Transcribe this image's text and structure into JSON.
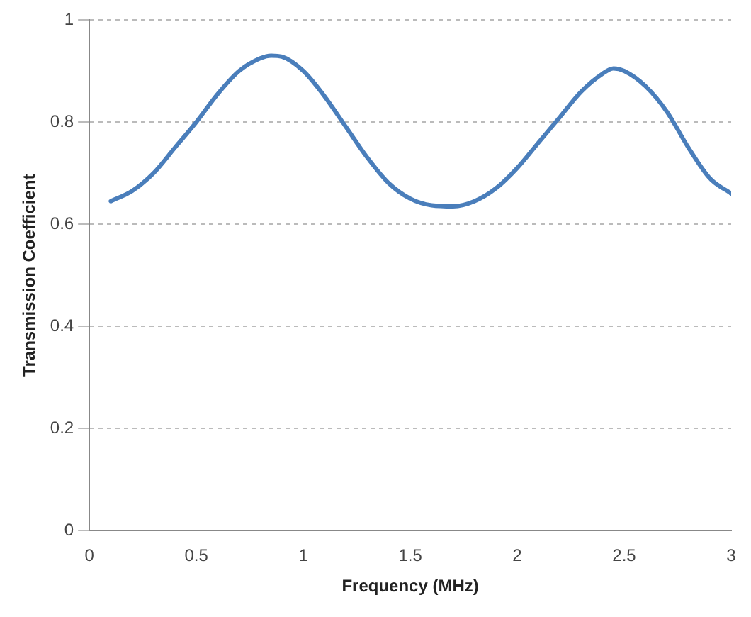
{
  "chart_data": {
    "type": "line",
    "xlabel": "Frequency (MHz)",
    "ylabel": "Transmission Coefficient",
    "x": [
      0.1,
      0.2,
      0.3,
      0.4,
      0.5,
      0.6,
      0.7,
      0.8,
      0.85,
      0.9,
      1.0,
      1.1,
      1.2,
      1.3,
      1.4,
      1.5,
      1.6,
      1.7,
      1.8,
      1.9,
      2.0,
      2.1,
      2.2,
      2.3,
      2.4,
      2.45,
      2.5,
      2.6,
      2.7,
      2.8,
      2.9,
      3.0
    ],
    "series": [
      {
        "color": "#4a7ebb",
        "values": [
          0.645,
          0.665,
          0.7,
          0.75,
          0.8,
          0.855,
          0.9,
          0.925,
          0.93,
          0.928,
          0.9,
          0.85,
          0.79,
          0.73,
          0.68,
          0.65,
          0.637,
          0.635,
          0.645,
          0.67,
          0.71,
          0.76,
          0.81,
          0.86,
          0.895,
          0.905,
          0.9,
          0.87,
          0.82,
          0.75,
          0.69,
          0.66
        ]
      }
    ],
    "xlim": [
      0,
      3
    ],
    "xticks": [
      0,
      0.5,
      1,
      1.5,
      2,
      2.5,
      3
    ],
    "ylim": [
      0,
      1
    ],
    "yticks": [
      0,
      0.2,
      0.4,
      0.6,
      0.8,
      1
    ],
    "grid": "y",
    "legend": false,
    "marker": "none",
    "line_style": "solid"
  }
}
